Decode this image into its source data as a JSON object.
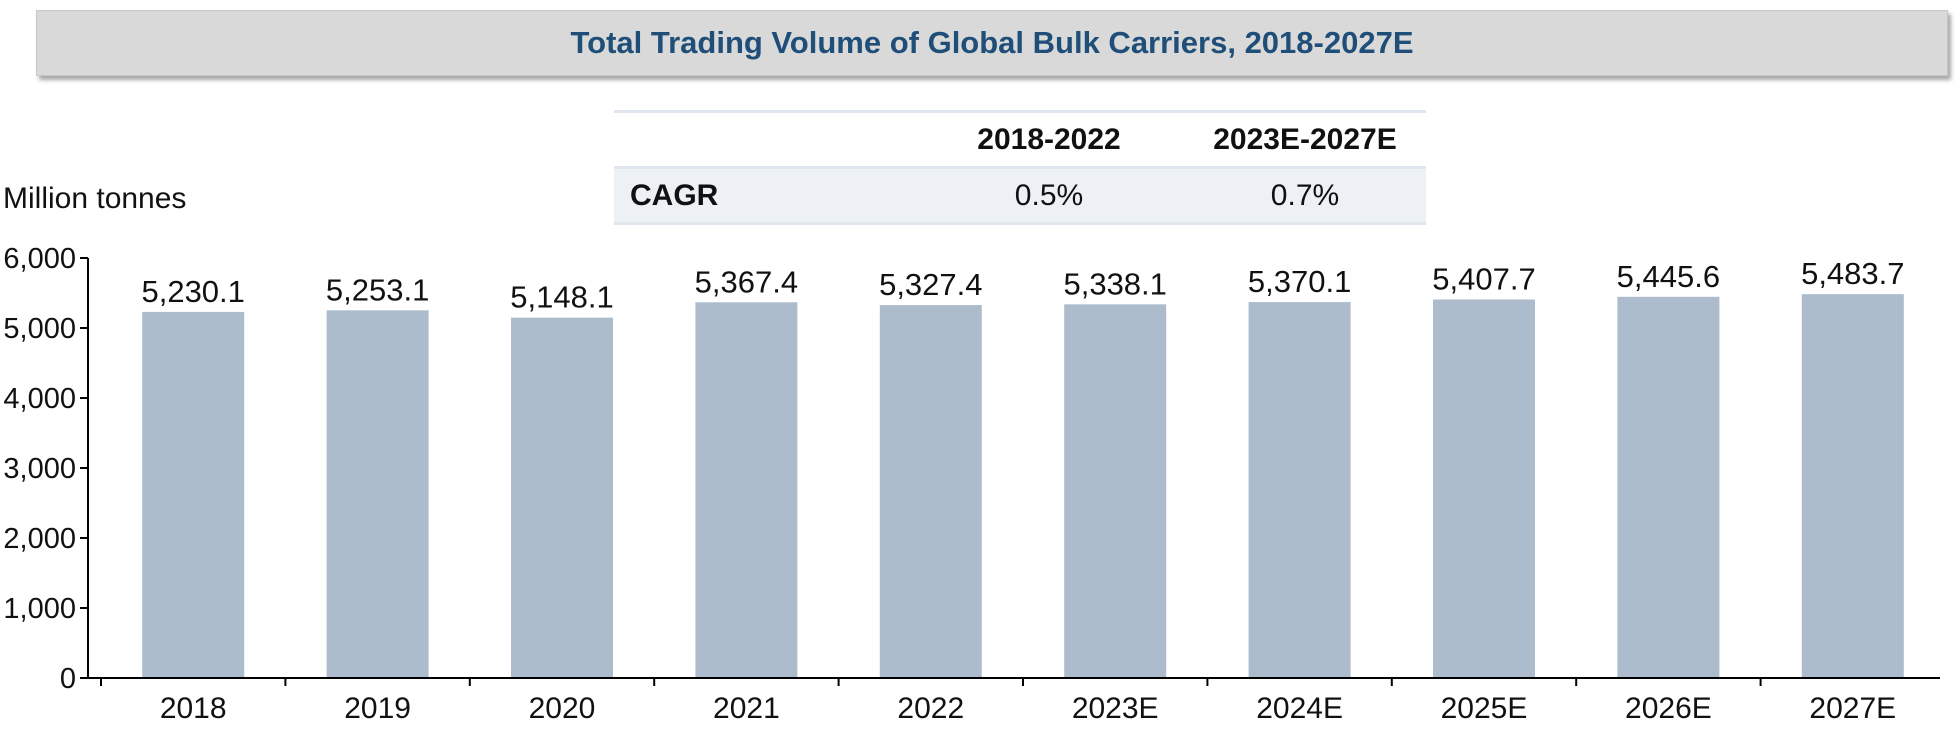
{
  "title": "Total Trading Volume of Global Bulk Carriers, 2018-2027E",
  "cagr_table": {
    "columns": [
      "2018-2022",
      "2023E-2027E"
    ],
    "row_label": "CAGR",
    "values": [
      "0.5%",
      "0.7%"
    ]
  },
  "chart_data": {
    "type": "bar",
    "title": "Total Trading Volume of Global Bulk Carriers, 2018-2027E",
    "ylabel": "Million tonnes",
    "xlabel": "",
    "categories": [
      "2018",
      "2019",
      "2020",
      "2021",
      "2022",
      "2023E",
      "2024E",
      "2025E",
      "2026E",
      "2027E"
    ],
    "values": [
      5230.1,
      5253.1,
      5148.1,
      5367.4,
      5327.4,
      5338.1,
      5370.1,
      5407.7,
      5445.6,
      5483.7
    ],
    "value_labels": [
      "5,230.1",
      "5,253.1",
      "5,148.1",
      "5,367.4",
      "5,327.4",
      "5,338.1",
      "5,370.1",
      "5,407.7",
      "5,445.6",
      "5,483.7"
    ],
    "ylim": [
      0,
      6000
    ],
    "yticks": [
      0,
      1000,
      2000,
      3000,
      4000,
      5000,
      6000
    ],
    "ytick_labels": [
      "0",
      "1,000",
      "2,000",
      "3,000",
      "4,000",
      "5,000",
      "6,000"
    ],
    "grid": false,
    "legend": "none",
    "bar_color": "#adbccd",
    "axis_color": "#000000"
  }
}
